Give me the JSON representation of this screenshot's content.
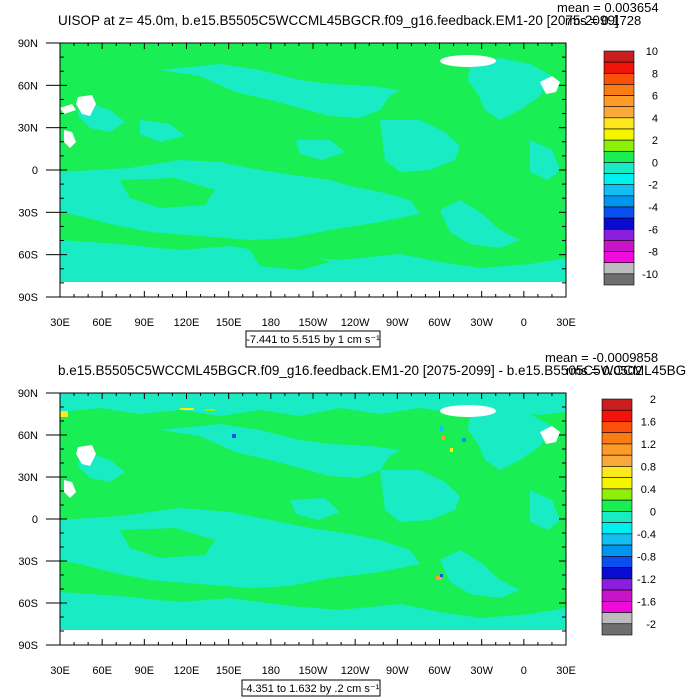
{
  "palette": {
    "map_green": "#19ee55",
    "map_cyan": "#19ecc4",
    "ice_white": "#ffffff",
    "frame": "#000000",
    "no_data": "#ffffff"
  },
  "chart_data": [
    {
      "type": "heatmap",
      "subtype": "lat-lon filled contour map",
      "title": "UISOP at z=  45.0m, b.e15.B5505C5WCCML45BGCR.f09_g16.feedback.EM1-20 [2075-2099]",
      "stats": {
        "mean": "mean = 0.003654",
        "rms": "rms = 0.1728"
      },
      "x_ticks": [
        "30E",
        "60E",
        "90E",
        "120E",
        "150E",
        "180",
        "150W",
        "120W",
        "90W",
        "60W",
        "30W",
        "0",
        "30E"
      ],
      "y_ticks": [
        "90N",
        "60N",
        "30N",
        "0",
        "30S",
        "60S",
        "90S"
      ],
      "xlim": [
        30,
        390
      ],
      "ylim": [
        -90,
        90
      ],
      "valid_lat_range": [
        -78,
        90
      ],
      "vector_ref_label": "-7.441 to 5.515 by 1 cm s⁻¹",
      "colorbar": {
        "labels": [
          "10",
          "8",
          "6",
          "4",
          "2",
          "0",
          "-2",
          "-4",
          "-6",
          "-8",
          "-10"
        ],
        "colors": [
          "#c81e1e",
          "#f0140a",
          "#fa500a",
          "#fa7c14",
          "#fc9b28",
          "#faa83c",
          "#fde81e",
          "#f5f500",
          "#8cf00a",
          "#19ee55",
          "#19ecc4",
          "#00f0f0",
          "#14bef0",
          "#0096f0",
          "#0a50f0",
          "#0a0ad2",
          "#8c1ede",
          "#c814c8",
          "#f00adc",
          "#bcbcbc",
          "#6e6e6e"
        ]
      },
      "field_summary": {
        "dominant_value_range": [
          0,
          2
        ],
        "secondary_value_range": [
          -2,
          0
        ],
        "dominant_color": "#19ee55",
        "secondary_color": "#19ecc4"
      }
    },
    {
      "type": "heatmap",
      "subtype": "lat-lon filled contour map (difference)",
      "title": "b.e15.B5505C5WCCML45BGCR.f09_g16.feedback.EM1-20 [2075-2099] - b.e15.B5505C5WCCML45BG",
      "stats": {
        "mean": "mean = -0.0009858",
        "rms": "rms = 0.0502"
      },
      "x_ticks": [
        "30E",
        "60E",
        "90E",
        "120E",
        "150E",
        "180",
        "150W",
        "120W",
        "90W",
        "60W",
        "30W",
        "0",
        "30E"
      ],
      "y_ticks": [
        "90N",
        "60N",
        "30N",
        "0",
        "30S",
        "60S",
        "90S"
      ],
      "xlim": [
        30,
        390
      ],
      "ylim": [
        -90,
        90
      ],
      "valid_lat_range": [
        -78,
        90
      ],
      "vector_ref_label": "-4.351 to 1.632 by .2 cm s⁻¹",
      "colorbar": {
        "labels": [
          "2",
          "1.6",
          "1.2",
          "0.8",
          "0.4",
          "0",
          "-0.4",
          "-0.8",
          "-1.2",
          "-1.6",
          "-2"
        ],
        "colors": [
          "#c81e1e",
          "#f0140a",
          "#fa500a",
          "#fa7c14",
          "#fc9b28",
          "#faa83c",
          "#fde81e",
          "#f5f500",
          "#8cf00a",
          "#19ee55",
          "#19ecc4",
          "#00f0f0",
          "#14bef0",
          "#0096f0",
          "#0a50f0",
          "#0a0ad2",
          "#8c1ede",
          "#c814c8",
          "#f00adc",
          "#bcbcbc",
          "#6e6e6e"
        ]
      },
      "field_summary": {
        "dominant_value_range": [
          0,
          0.2
        ],
        "secondary_value_range": [
          -0.2,
          0
        ],
        "dominant_color": "#19ee55",
        "secondary_color": "#19ecc4"
      }
    }
  ]
}
